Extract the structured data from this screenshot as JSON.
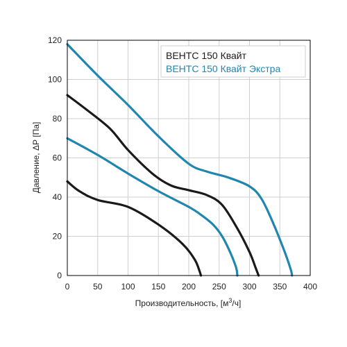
{
  "colors": {
    "series_black": "#1a1a1a",
    "series_blue": "#1f86b0",
    "legend_box_border": "#cfcfcf",
    "plot_border": "#000000",
    "grid": "#cfcfcf"
  },
  "chart_data": {
    "type": "line",
    "title": "",
    "xlabel_main": "Производительность, [м",
    "xlabel_sup": "3",
    "xlabel_end": "/ч]",
    "ylabel": "Давление, ΔР [Па]",
    "xlim": [
      0,
      400
    ],
    "ylim": [
      0,
      120
    ],
    "xticks": [
      0,
      50,
      100,
      150,
      200,
      250,
      300,
      350,
      400
    ],
    "yticks": [
      0,
      20,
      40,
      60,
      80,
      100,
      120
    ],
    "grid": true,
    "legend": {
      "placement": "top-right",
      "entries": [
        {
          "label": "ВЕНТС 150 Квайт",
          "color": "#1a1a1a"
        },
        {
          "label": "ВЕНТС 150 Квайт Экстра",
          "color": "#1f86b0"
        }
      ]
    },
    "series": [
      {
        "legend_ref": "ВЕНТС 150 Квайт",
        "color": "#1a1a1a",
        "points": [
          [
            0,
            48
          ],
          [
            20,
            43
          ],
          [
            50,
            38.5
          ],
          [
            100,
            35
          ],
          [
            150,
            26
          ],
          [
            190,
            16
          ],
          [
            210,
            8
          ],
          [
            218,
            2
          ],
          [
            220,
            0
          ]
        ]
      },
      {
        "legend_ref": "ВЕНТС 150 Квайт",
        "color": "#1a1a1a",
        "points": [
          [
            0,
            92
          ],
          [
            30,
            85
          ],
          [
            70,
            75
          ],
          [
            100,
            64
          ],
          [
            140,
            52
          ],
          [
            170,
            46
          ],
          [
            200,
            43.5
          ],
          [
            230,
            41
          ],
          [
            255,
            36
          ],
          [
            280,
            24
          ],
          [
            300,
            12
          ],
          [
            310,
            4
          ],
          [
            315,
            0
          ]
        ]
      },
      {
        "legend_ref": "ВЕНТС 150 Квайт Экстра",
        "color": "#1f86b0",
        "points": [
          [
            0,
            70
          ],
          [
            50,
            61.5
          ],
          [
            100,
            52
          ],
          [
            150,
            43
          ],
          [
            200,
            35
          ],
          [
            220,
            31
          ],
          [
            240,
            26
          ],
          [
            255,
            20
          ],
          [
            268,
            12
          ],
          [
            278,
            4
          ],
          [
            280,
            0
          ]
        ]
      },
      {
        "legend_ref": "ВЕНТС 150 Квайт Экстра",
        "color": "#1f86b0",
        "points": [
          [
            0,
            118
          ],
          [
            50,
            102
          ],
          [
            100,
            87
          ],
          [
            150,
            71
          ],
          [
            200,
            57
          ],
          [
            230,
            53
          ],
          [
            265,
            50
          ],
          [
            300,
            45.5
          ],
          [
            320,
            39
          ],
          [
            340,
            26
          ],
          [
            358,
            12
          ],
          [
            368,
            3
          ],
          [
            370,
            0
          ]
        ]
      }
    ]
  }
}
